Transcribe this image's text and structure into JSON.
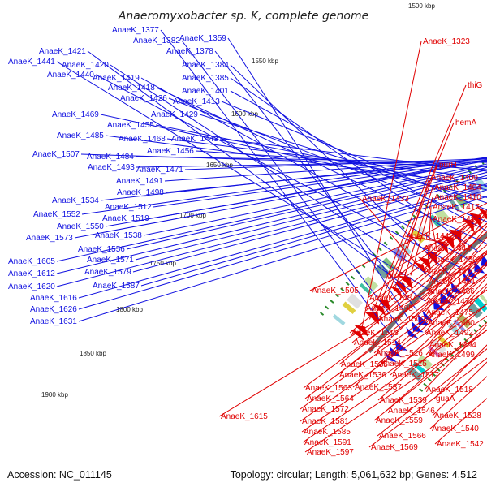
{
  "title": "Anaeromyxobacter sp. K, complete genome",
  "footer": {
    "accession": "Accession: NC_011145",
    "topology": "Topology: circular; Length: 5,061,632 bp; Genes: 4,512"
  },
  "colors": {
    "forward": "#1010e0",
    "reverse": "#e00000",
    "backbone": "#707070",
    "tick": "#2a8a2a"
  },
  "kbp_markers": [
    "1500 kbp",
    "1550 kbp",
    "1600 kbp",
    "1650 kbp",
    "1700 kbp",
    "1750 kbp",
    "1800 kbp",
    "1850 kbp",
    "1900 kbp"
  ],
  "forward_labels": [
    "AnaeK_1377",
    "AnaeK_1382",
    "AnaeK_1359",
    "AnaeK_1378",
    "AnaeK_1421",
    "AnaeK_1441",
    "AnaeK_1420",
    "AnaeK_1384",
    "AnaeK_1440",
    "AnaeK_1419",
    "AnaeK_1385",
    "AnaeK_1418",
    "AnaeK_1401",
    "AnaeK_1426",
    "AnaeK_1413",
    "AnaeK_1429",
    "AnaeK_1469",
    "AnaeK_1455",
    "AnaeK_1485",
    "AnaeK_1468",
    "AnaeK_1443",
    "AnaeK_1456",
    "AnaeK_1507",
    "AnaeK_1484",
    "AnaeK_1493",
    "AnaeK_1471",
    "AnaeK_1491",
    "AnaeK_1498",
    "AnaeK_1534",
    "AnaeK_1512",
    "AnaeK_1552",
    "AnaeK_1519",
    "AnaeK_1550",
    "AnaeK_1573",
    "AnaeK_1538",
    "AnaeK_1556",
    "AnaeK_1605",
    "AnaeK_1571",
    "AnaeK_1612",
    "AnaeK_1579",
    "AnaeK_1620",
    "AnaeK_1587",
    "AnaeK_1616",
    "AnaeK_1626",
    "AnaeK_1631"
  ],
  "reverse_labels": [
    "AnaeK_1323",
    "thiG",
    "hemA",
    "purH",
    "AnaeK_1400",
    "AnaeK_1404",
    "AnaeK_1410",
    "AnaeK_1433",
    "AnaeK_1417",
    "AnaeK_1424",
    "AnaeK_1442",
    "AnaeK_1444",
    "AnaeK_1450",
    "AnaeK_1457",
    "groEL",
    "AnaeK_1461",
    "AnaeK_1466",
    "AnaeK_1505",
    "AnaeK_1472",
    "AnaeK_1487",
    "AnaeK_1475",
    "AnaeK_1495",
    "AnaeK_1500",
    "AnaeK_1480",
    "AnaeK_1513",
    "AnaeK_1492",
    "AnaeK_1514",
    "AnaeK_1494",
    "AnaeK_1516",
    "AnaeK_1499",
    "AnaeK_1535",
    "AnaeK_1515",
    "AnaeK_1536",
    "AnaeK_1517",
    "AnaeK_1563",
    "AnaeK_1537",
    "AnaeK_1518",
    "AnaeK_1564",
    "AnaeK_1539",
    "guaA",
    "AnaeK_1572",
    "AnaeK_1546",
    "AnaeK_1528",
    "AnaeK_1615",
    "AnaeK_1581",
    "AnaeK_1559",
    "AnaeK_1540",
    "AnaeK_1585",
    "AnaeK_1566",
    "AnaeK_1591",
    "AnaeK_1542",
    "AnaeK_1569",
    "AnaeK_1597"
  ],
  "cog_palette": [
    "#a0d8e0",
    "#00d0d0",
    "#e0d040",
    "#80c080",
    "#d070c0",
    "#9090e0",
    "#c0e0a0",
    "#ff60a0",
    "#70a0a0",
    "#e0e0e0",
    "#b0b060",
    "#40c0a0"
  ]
}
